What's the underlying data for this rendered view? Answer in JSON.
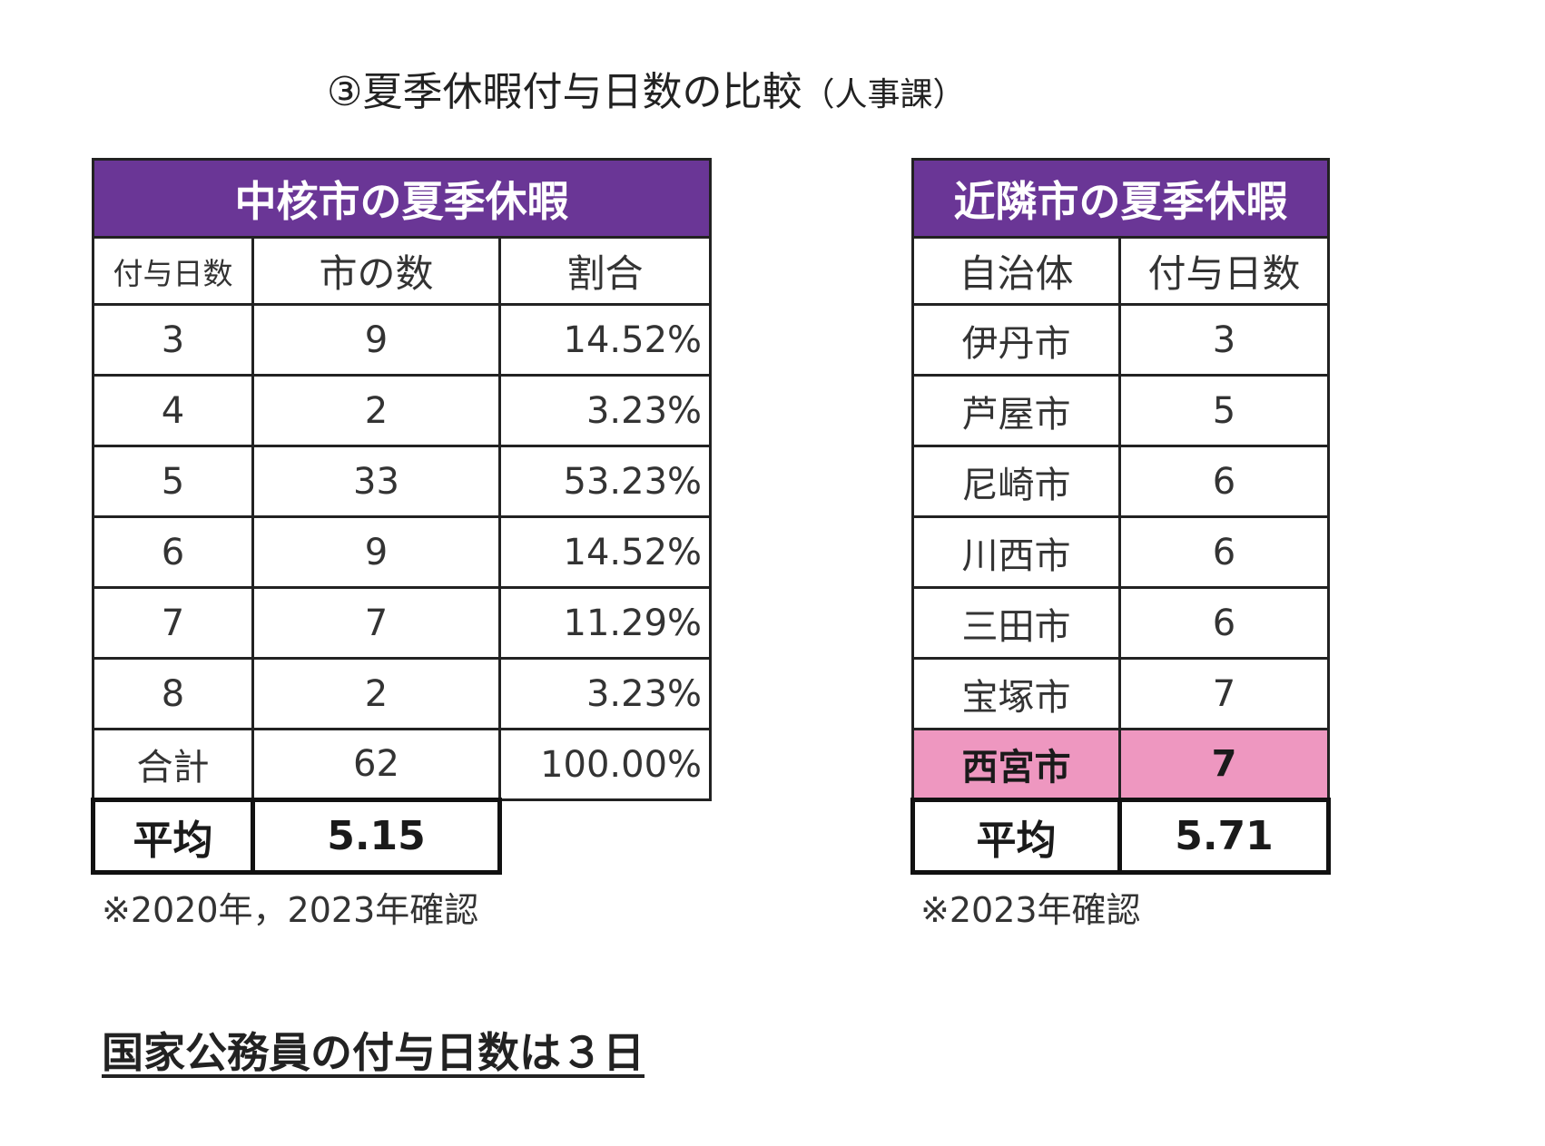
{
  "title": {
    "main": "③夏季休暇付与日数の比較",
    "sub": "（人事課）"
  },
  "left_table": {
    "header": "中核市の夏季休暇",
    "columns": [
      "付与日数",
      "市の数",
      "割合"
    ],
    "rows": [
      [
        "3",
        "9",
        "14.52%"
      ],
      [
        "4",
        "2",
        "3.23%"
      ],
      [
        "5",
        "33",
        "53.23%"
      ],
      [
        "6",
        "9",
        "14.52%"
      ],
      [
        "7",
        "7",
        "11.29%"
      ],
      [
        "8",
        "2",
        "3.23%"
      ],
      [
        "合計",
        "62",
        "100.00%"
      ]
    ],
    "average_label": "平均",
    "average_value": "5.15",
    "note": "※2020年，2023年確認"
  },
  "right_table": {
    "header": "近隣市の夏季休暇",
    "columns": [
      "自治体",
      "付与日数"
    ],
    "rows": [
      [
        "伊丹市",
        "3"
      ],
      [
        "芦屋市",
        "5"
      ],
      [
        "尼崎市",
        "6"
      ],
      [
        "川西市",
        "6"
      ],
      [
        "三田市",
        "6"
      ],
      [
        "宝塚市",
        "7"
      ],
      [
        "西宮市",
        "7"
      ]
    ],
    "highlight_row": "西宮市",
    "average_label": "平均",
    "average_value": "5.71",
    "note": "※2023年確認"
  },
  "footer_note": "国家公務員の付与日数は３日",
  "colors": {
    "header_bg": "#6a3696",
    "highlight_bg": "#ee97c0"
  }
}
